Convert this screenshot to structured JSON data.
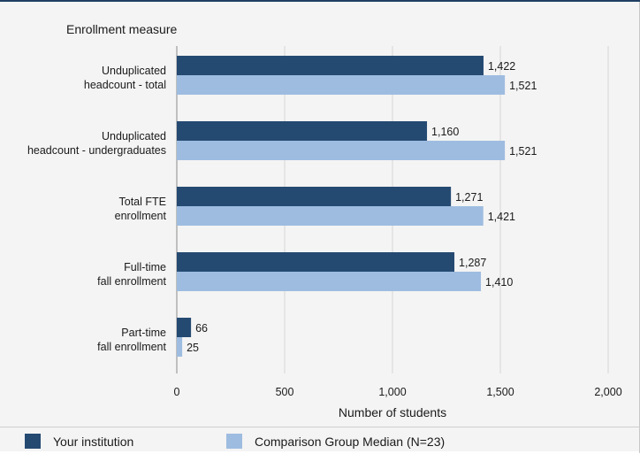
{
  "chart_data": {
    "type": "bar",
    "orientation": "horizontal",
    "y_axis_title": "Enrollment measure",
    "xlabel": "Number of students",
    "xlim": [
      0,
      2000
    ],
    "xticks": [
      0,
      500,
      1000,
      1500,
      2000
    ],
    "xtick_labels": [
      "0",
      "500",
      "1,000",
      "1,500",
      "2,000"
    ],
    "grid": true,
    "legend_position": "bottom",
    "categories": [
      [
        "Unduplicated",
        "headcount - total"
      ],
      [
        "Unduplicated",
        "headcount - undergraduates"
      ],
      [
        "Total FTE",
        "enrollment"
      ],
      [
        "Full-time",
        "fall enrollment"
      ],
      [
        "Part-time",
        "fall enrollment"
      ]
    ],
    "series": [
      {
        "name": "Your institution",
        "color": "#254a72",
        "values": [
          1422,
          1160,
          1271,
          1287,
          66
        ],
        "labels": [
          "1,422",
          "1,160",
          "1,271",
          "1,287",
          "66"
        ]
      },
      {
        "name": "Comparison Group Median (N=23)",
        "color": "#9ebce0",
        "values": [
          1521,
          1521,
          1421,
          1410,
          25
        ],
        "labels": [
          "1,521",
          "1,521",
          "1,421",
          "1,410",
          "25"
        ]
      }
    ]
  }
}
